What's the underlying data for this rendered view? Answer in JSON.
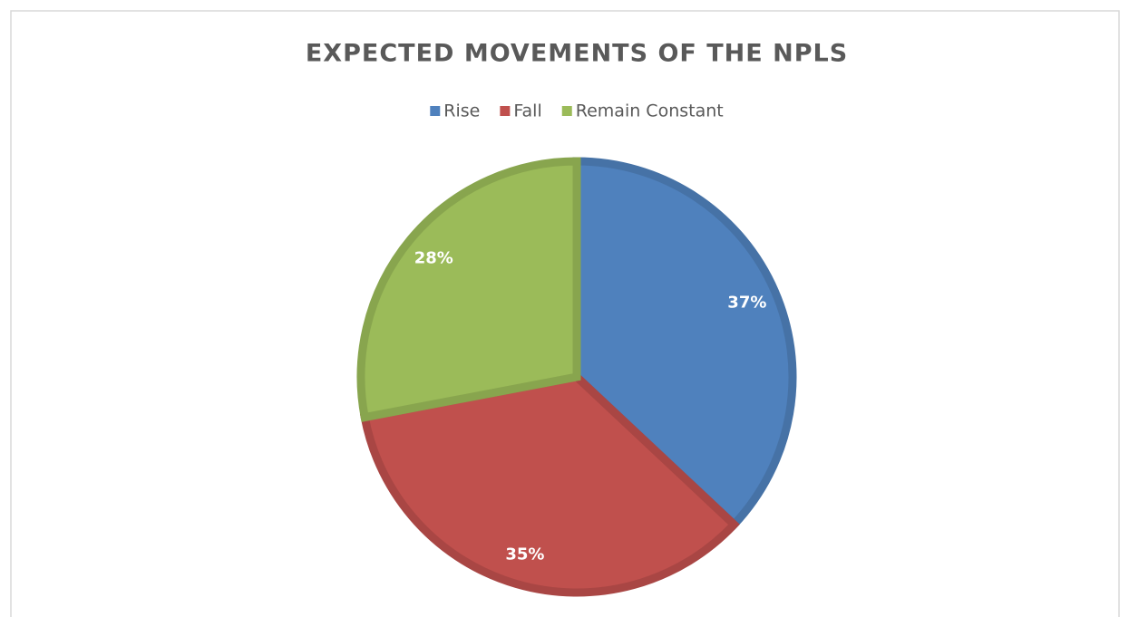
{
  "chart_data": {
    "type": "pie",
    "title": "EXPECTED MOVEMENTS OF THE NPLS",
    "categories": [
      "Rise",
      "Fall",
      "Remain Constant"
    ],
    "values": [
      37,
      35,
      28
    ],
    "value_labels": [
      "37%",
      "35%",
      "28%"
    ],
    "colors": [
      "#4f81bd",
      "#c0504d",
      "#9bbb59"
    ],
    "legend": "top"
  }
}
